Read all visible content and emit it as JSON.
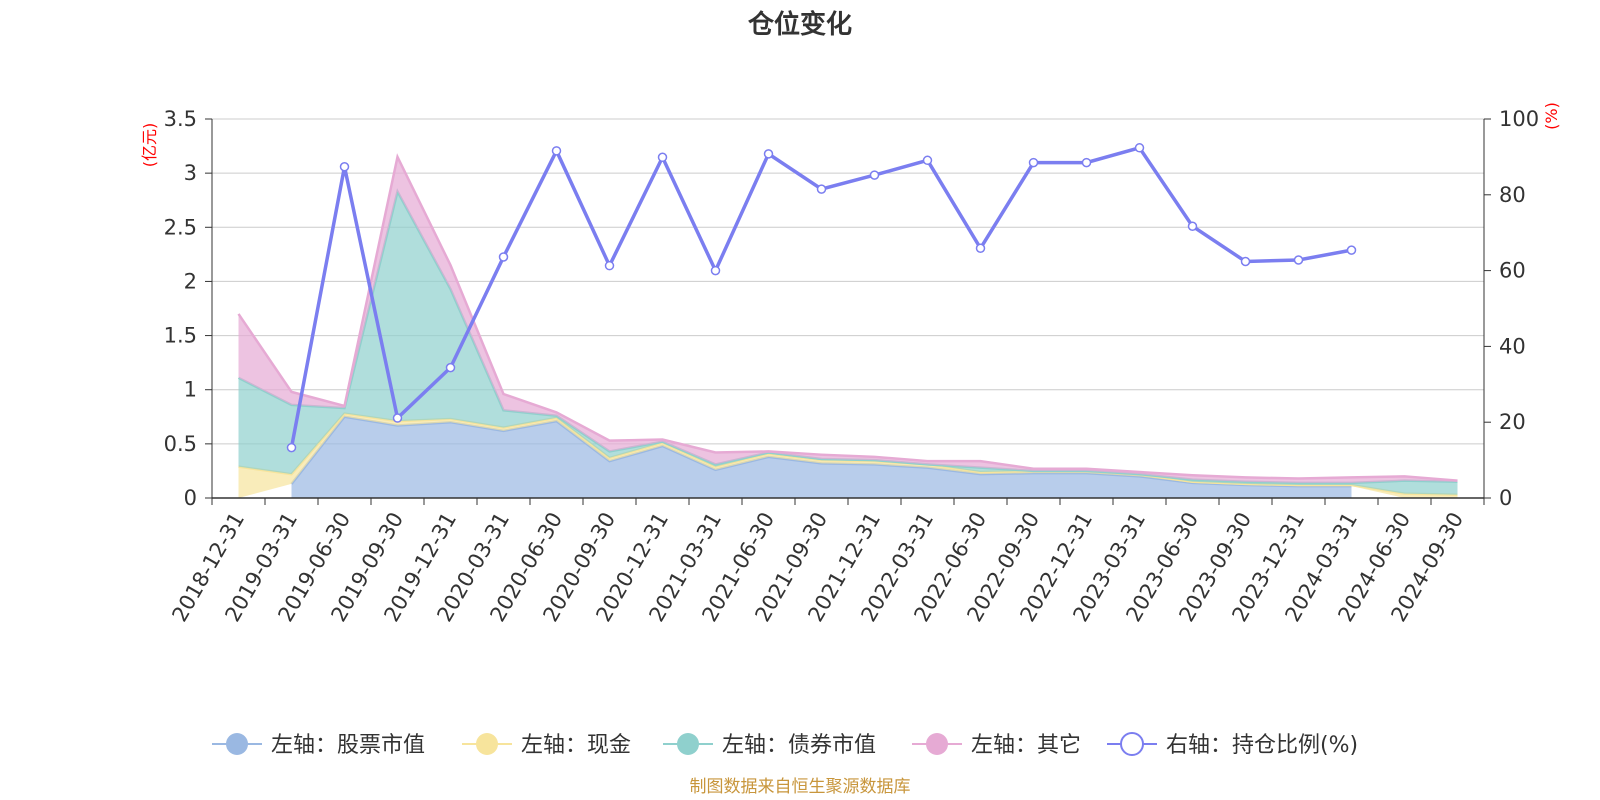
{
  "chart_data": {
    "type": "area",
    "title": "仓位变化",
    "left_unit": "(亿元)",
    "right_unit": "(%)",
    "left_ticks": [
      "0",
      "0.5",
      "1",
      "1.5",
      "2",
      "2.5",
      "3",
      "3.5"
    ],
    "right_ticks": [
      "0",
      "20",
      "40",
      "60",
      "80",
      "100"
    ],
    "ylim_left": [
      0,
      3.5
    ],
    "ylim_right": [
      0,
      100
    ],
    "categories": [
      "2018-12-31",
      "2019-03-31",
      "2019-06-30",
      "2019-09-30",
      "2019-12-31",
      "2020-03-31",
      "2020-06-30",
      "2020-09-30",
      "2020-12-31",
      "2021-03-31",
      "2021-06-30",
      "2021-09-30",
      "2021-12-31",
      "2022-03-31",
      "2022-06-30",
      "2022-09-30",
      "2022-12-31",
      "2023-03-31",
      "2023-06-30",
      "2023-09-30",
      "2023-12-31",
      "2024-03-31",
      "2024-06-30",
      "2024-09-30"
    ],
    "series": [
      {
        "name": "左轴：股票市值",
        "axis": "left",
        "color": "#9ab8e2",
        "values": [
          null,
          0.13,
          0.75,
          0.67,
          0.7,
          0.62,
          0.71,
          0.34,
          0.48,
          0.26,
          0.38,
          0.32,
          0.31,
          0.28,
          0.22,
          0.23,
          0.23,
          0.2,
          0.14,
          0.12,
          0.11,
          0.11,
          null,
          null
        ]
      },
      {
        "name": "左轴：现金",
        "axis": "left",
        "color": "#f7e49c",
        "values": [
          0.29,
          0.09,
          0.03,
          0.04,
          0.03,
          0.03,
          0.03,
          0.03,
          0.03,
          0.03,
          0.03,
          0.03,
          0.03,
          0.03,
          0.02,
          0.02,
          0.02,
          0.02,
          0.01,
          0.01,
          0.01,
          0.01,
          0.04,
          0.03
        ]
      },
      {
        "name": "左轴：债券市值",
        "axis": "left",
        "color": "#8fd0cd",
        "values": [
          0.82,
          0.64,
          0.05,
          2.12,
          1.2,
          0.16,
          0.02,
          0.06,
          0.01,
          0.02,
          0.01,
          0.01,
          0.01,
          0.0,
          0.04,
          0.0,
          0.0,
          0.0,
          0.02,
          0.02,
          0.02,
          0.02,
          0.12,
          0.12
        ]
      },
      {
        "name": "左轴：其它",
        "axis": "left",
        "color": "#e6aad4",
        "values": [
          0.59,
          0.12,
          0.02,
          0.32,
          0.22,
          0.15,
          0.03,
          0.1,
          0.02,
          0.11,
          0.01,
          0.04,
          0.03,
          0.03,
          0.06,
          0.02,
          0.02,
          0.02,
          0.04,
          0.04,
          0.04,
          0.05,
          0.04,
          0.01
        ]
      },
      {
        "name": "右轴：持仓比例(%)",
        "axis": "right",
        "color": "#7b7ef0",
        "values": [
          null,
          13.3,
          87.4,
          21.1,
          34.4,
          63.6,
          91.6,
          61.3,
          89.9,
          60.0,
          90.8,
          81.5,
          85.2,
          89.1,
          65.9,
          88.5,
          88.5,
          92.4,
          71.7,
          62.4,
          62.8,
          65.4,
          null,
          null
        ]
      }
    ],
    "legend_position": "bottom",
    "grid": true
  },
  "footer": {
    "source": "制图数据来自恒生聚源数据库"
  }
}
